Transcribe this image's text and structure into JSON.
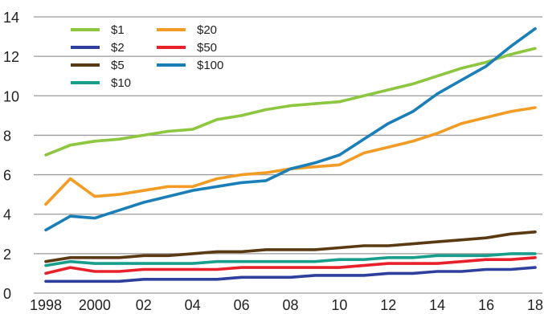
{
  "chart_data": {
    "type": "line",
    "title": "",
    "xlabel": "",
    "ylabel": "",
    "x": [
      1998,
      1999,
      2000,
      2001,
      2002,
      2003,
      2004,
      2005,
      2006,
      2007,
      2008,
      2009,
      2010,
      2011,
      2012,
      2013,
      2014,
      2015,
      2016,
      2017,
      2018
    ],
    "x_tick_values": [
      1998,
      2000,
      2002,
      2004,
      2006,
      2008,
      2010,
      2012,
      2014,
      2016,
      2018
    ],
    "x_tick_labels": [
      "1998",
      "2000",
      "02",
      "04",
      "06",
      "08",
      "10",
      "12",
      "14",
      "16",
      "18"
    ],
    "ylim": [
      0,
      14
    ],
    "y_ticks": [
      0,
      2,
      4,
      6,
      8,
      10,
      12,
      14
    ],
    "grid": "horizontal",
    "legend_position": "top-left",
    "series": [
      {
        "name": "$1",
        "color": "#8dc63f",
        "values": [
          7.0,
          7.5,
          7.7,
          7.8,
          8.0,
          8.2,
          8.3,
          8.8,
          9.0,
          9.3,
          9.5,
          9.6,
          9.7,
          10.0,
          10.3,
          10.6,
          11.0,
          11.4,
          11.7,
          12.1,
          12.4
        ]
      },
      {
        "name": "$2",
        "color": "#2e3f9e",
        "values": [
          0.6,
          0.6,
          0.6,
          0.6,
          0.7,
          0.7,
          0.7,
          0.7,
          0.8,
          0.8,
          0.8,
          0.9,
          0.9,
          0.9,
          1.0,
          1.0,
          1.1,
          1.1,
          1.2,
          1.2,
          1.3
        ]
      },
      {
        "name": "$5",
        "color": "#5a3a12",
        "values": [
          1.6,
          1.8,
          1.8,
          1.8,
          1.9,
          1.9,
          2.0,
          2.1,
          2.1,
          2.2,
          2.2,
          2.2,
          2.3,
          2.4,
          2.4,
          2.5,
          2.6,
          2.7,
          2.8,
          3.0,
          3.1
        ]
      },
      {
        "name": "$10",
        "color": "#1a9e8c",
        "values": [
          1.4,
          1.6,
          1.5,
          1.5,
          1.5,
          1.5,
          1.5,
          1.6,
          1.6,
          1.6,
          1.6,
          1.6,
          1.7,
          1.7,
          1.8,
          1.8,
          1.9,
          1.9,
          1.9,
          2.0,
          2.0
        ]
      },
      {
        "name": "$20",
        "color": "#f39c25",
        "values": [
          4.5,
          5.8,
          4.9,
          5.0,
          5.2,
          5.4,
          5.4,
          5.8,
          6.0,
          6.1,
          6.3,
          6.4,
          6.5,
          7.1,
          7.4,
          7.7,
          8.1,
          8.6,
          8.9,
          9.2,
          9.4
        ]
      },
      {
        "name": "$50",
        "color": "#e8202a",
        "values": [
          1.0,
          1.3,
          1.1,
          1.1,
          1.2,
          1.2,
          1.2,
          1.2,
          1.3,
          1.3,
          1.3,
          1.3,
          1.3,
          1.4,
          1.5,
          1.5,
          1.5,
          1.6,
          1.7,
          1.7,
          1.8
        ]
      },
      {
        "name": "$100",
        "color": "#1a7fb8",
        "values": [
          3.2,
          3.9,
          3.8,
          4.2,
          4.6,
          4.9,
          5.2,
          5.4,
          5.6,
          5.7,
          6.3,
          6.6,
          7.0,
          7.8,
          8.6,
          9.2,
          10.1,
          10.8,
          11.5,
          12.5,
          13.4
        ]
      }
    ]
  }
}
